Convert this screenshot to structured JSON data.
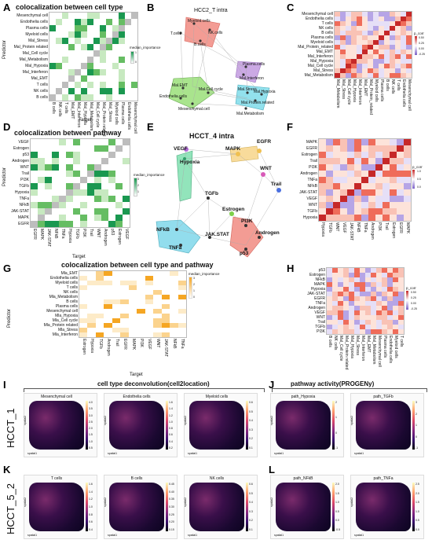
{
  "panel_labels": [
    "A",
    "B",
    "C",
    "D",
    "E",
    "F",
    "G",
    "H",
    "I",
    "J",
    "K",
    "L"
  ],
  "A": {
    "title": "colocalization between cell type",
    "ylabel": "Predictor",
    "xlabel": "Target",
    "legend_title": "median_importance",
    "legend_ticks": [
      "1",
      "0"
    ],
    "rows": [
      "Mesenchymal cell",
      "Endothelia cells",
      "Plasma cells",
      "Myeloid cells",
      "Mal_Stress",
      "Mal_Protein related",
      "Mal_Cell cycle",
      "Mal_Metabolism",
      "Mal_Hypoxia",
      "Mal_Interferon",
      "Mal_EMT",
      "T cells",
      "NK cells",
      "B cells"
    ],
    "cols": [
      "B cells",
      "NK cells",
      "T cells",
      "Mal_EMT",
      "Mal_Interferon",
      "Mal_Hypoxia",
      "Mal_Metabolism",
      "Mal_Cell cycle",
      "Mal_Protein related",
      "Mal_Stress",
      "Myeloid cells",
      "Plasma cells",
      "Endothelia cells",
      "Mesenchymal cell"
    ]
  },
  "B": {
    "title": "HCC2_T intra",
    "nodes": [
      "Myeloid.cells",
      "T.cells",
      "NK.cells",
      "B.cells",
      "Plasma.cells",
      "Mal.Interferon",
      "Mal.EMT",
      "Mal.Cell.cycle",
      "Endothelia.cells",
      "Mal.Hypoxia",
      "Mal.Stress",
      "Mal.Protein.related",
      "Mesenchymal.cell",
      "Mal.Metabolism"
    ]
  },
  "C": {
    "legend_title": "p_corr",
    "legend_ticks": [
      "0.50",
      "0.25",
      "0.00",
      "-0.25"
    ],
    "rows": [
      "Mesenchymal cell",
      "Endothelia cells",
      "T cells",
      "NK cells",
      "B cells",
      "Plasma cells",
      "Myeloid cells",
      "Mal_Protein_related",
      "Mal_EMT",
      "Mal_Interferon",
      "Mal_Hypoxia",
      "Mal_Cell cycle",
      "Mal_Stress",
      "Mal_Metabolism"
    ],
    "cols": [
      "Mal_Metabolism",
      "Mal_Stress",
      "Mal_Cell cycle",
      "Mal_Hypoxia",
      "Mal_Interferon",
      "Mal_EMT",
      "Mal_Protein_related",
      "Myeloid cells",
      "Plasma cells",
      "B cells",
      "NK cells",
      "T cells",
      "Endothelia cells",
      "Mesenchymal cell"
    ]
  },
  "D": {
    "title": "colocalization between pathway",
    "ylabel": "Predictor",
    "xlabel": "Target",
    "legend_title": "median_importance",
    "legend_ticks": [
      "3",
      "2",
      "1"
    ],
    "rows": [
      "VEGF",
      "Estrogen",
      "p53",
      "Androgen",
      "WNT",
      "Trail",
      "PI3K",
      "TGFb",
      "Hypoxia",
      "TNFa",
      "NFkB",
      "JAK-STAT",
      "MAPK",
      "EGFR"
    ],
    "cols": [
      "EGFR",
      "MAPK",
      "JAK-STAT",
      "NFkB",
      "TNFa",
      "Hypoxia",
      "TGFb",
      "PI3K",
      "Trail",
      "WNT",
      "Androgen",
      "p53",
      "Estrogen",
      "VEGF"
    ]
  },
  "E": {
    "title": "HCCT_4 intra",
    "nodes": [
      "VEGF",
      "MAPK",
      "EGFR",
      "Hypoxia",
      "WNT",
      "Trail",
      "TGFb",
      "Estrogen",
      "PI3K",
      "NFkB",
      "Androgen",
      "JAK.STAT",
      "TNFa",
      "p53"
    ]
  },
  "F": {
    "legend_title": "p_corr",
    "legend_ticks": [
      "1.0",
      "0.5",
      "0.0"
    ],
    "rows": [
      "MAPK",
      "EGFR",
      "Estrogen",
      "Trail",
      "PI3K",
      "Androgen",
      "TNFa",
      "NFkB",
      "JAK-STAT",
      "VEGF",
      "WNT",
      "TGFb",
      "Hypoxia"
    ],
    "cols": [
      "Hypoxia",
      "TGFb",
      "WNT",
      "VEGF",
      "JAK-STAT",
      "NFkB",
      "TNFa",
      "Androgen",
      "PI3K",
      "Trail",
      "Estrogen",
      "EGFR",
      "MAPK"
    ]
  },
  "G": {
    "title": "colocalization between cell type and pathway",
    "ylabel": "Predictor",
    "xlabel": "Target",
    "legend_title": "median_importance",
    "legend_ticks": [
      "3",
      "2",
      "1",
      "0"
    ],
    "rows": [
      "Mla_EMT",
      "Endothelia cells",
      "Myeloid cells",
      "T cells",
      "NK cells",
      "Mla_Metabolism",
      "B cells",
      "Plasma cells",
      "Mesenchymal cell",
      "Mla_Hypoxia",
      "Mla_Cell cycle",
      "Mla_Protein related",
      "Mla_Stress",
      "Mla_Interferon"
    ],
    "cols": [
      "Estrogen",
      "Hypoxia",
      "TGFb",
      "Androgen",
      "Trail",
      "EGFR",
      "MAPK",
      "PI3K",
      "VEGF",
      "WNT",
      "JAK-STAT",
      "NFkB",
      "TNFa"
    ]
  },
  "H": {
    "legend_title": "p_corr",
    "legend_ticks": [
      "0.50",
      "0.25",
      "0.00",
      "-0.25"
    ],
    "rows": [
      "p53",
      "Estrogen",
      "NFkB",
      "MAPK",
      "Hypoxia",
      "JAK-STAT",
      "EGFR",
      "TNFa",
      "Androgen",
      "VEGF",
      "WNT",
      "Trail",
      "TGFb",
      "PI3K"
    ],
    "cols": [
      "B cells",
      "NK cells",
      "Mal_Cell cycle",
      "Mal_Protein related",
      "Mal_Hypoxia",
      "Mal_Stress",
      "Mal_Interferon",
      "Mal_EMT",
      "Mal_Metabolism",
      "Mesenchymal cell",
      "Plasma cells",
      "Endothelia cells",
      "Myeloid cells",
      "T cells"
    ]
  },
  "I": {
    "section": "cell type deconvolution(cell2location)",
    "row_label": "HCCT_1",
    "plots": [
      {
        "title": "Mesenchymal cell",
        "ticks": [
          "4.0",
          "3.5",
          "3.0",
          "2.5",
          "2.0",
          "1.5",
          "1.0",
          "0.5"
        ]
      },
      {
        "title": "Endothelia cells",
        "ticks": [
          "1.6",
          "1.4",
          "1.2",
          "1.0",
          "0.8",
          "0.6",
          "0.4",
          "0.2"
        ]
      },
      {
        "title": "Myeloid cells",
        "ticks": [
          "0.6",
          "0.5",
          "0.4",
          "0.3",
          "0.2",
          "0.1"
        ]
      }
    ],
    "axis_x": "spatial1",
    "axis_y": "spatial2"
  },
  "J": {
    "section": "pathway activity(PROGENy)",
    "plots": [
      {
        "title": "path_Hypoxia",
        "ticks": [
          "2",
          "1",
          "0",
          "-1"
        ]
      },
      {
        "title": "path_TGFb",
        "ticks": [
          "3",
          "2",
          "1",
          "0",
          "-1"
        ]
      }
    ],
    "axis_x": "spatial1",
    "axis_y": "spatial2"
  },
  "K": {
    "row_label": "HCCT_5_2",
    "plots": [
      {
        "title": "T cells",
        "ticks": [
          "1.6",
          "1.4",
          "1.2",
          "1.0",
          "0.8",
          "0.6",
          "0.4"
        ]
      },
      {
        "title": "B cells",
        "ticks": [
          "0.45",
          "0.40",
          "0.35",
          "0.30",
          "0.25",
          "0.20",
          "0.15"
        ]
      },
      {
        "title": "NK cells",
        "ticks": [
          "0.6",
          "0.5",
          "0.4",
          "0.3",
          "0.2",
          "0.1"
        ]
      }
    ],
    "axis_x": "spatial1",
    "axis_y": "spatial2"
  },
  "L": {
    "plots": [
      {
        "title": "path_NFkB",
        "ticks": [
          "2.0",
          "1.5",
          "1.0",
          "0.5",
          "0.0",
          "-0.5"
        ]
      },
      {
        "title": "path_TNFa",
        "ticks": [
          "2.5",
          "2.0",
          "1.5",
          "1.0",
          "0.5",
          "0.0"
        ]
      }
    ],
    "axis_x": "spatial1",
    "axis_y": "spatial2"
  }
}
